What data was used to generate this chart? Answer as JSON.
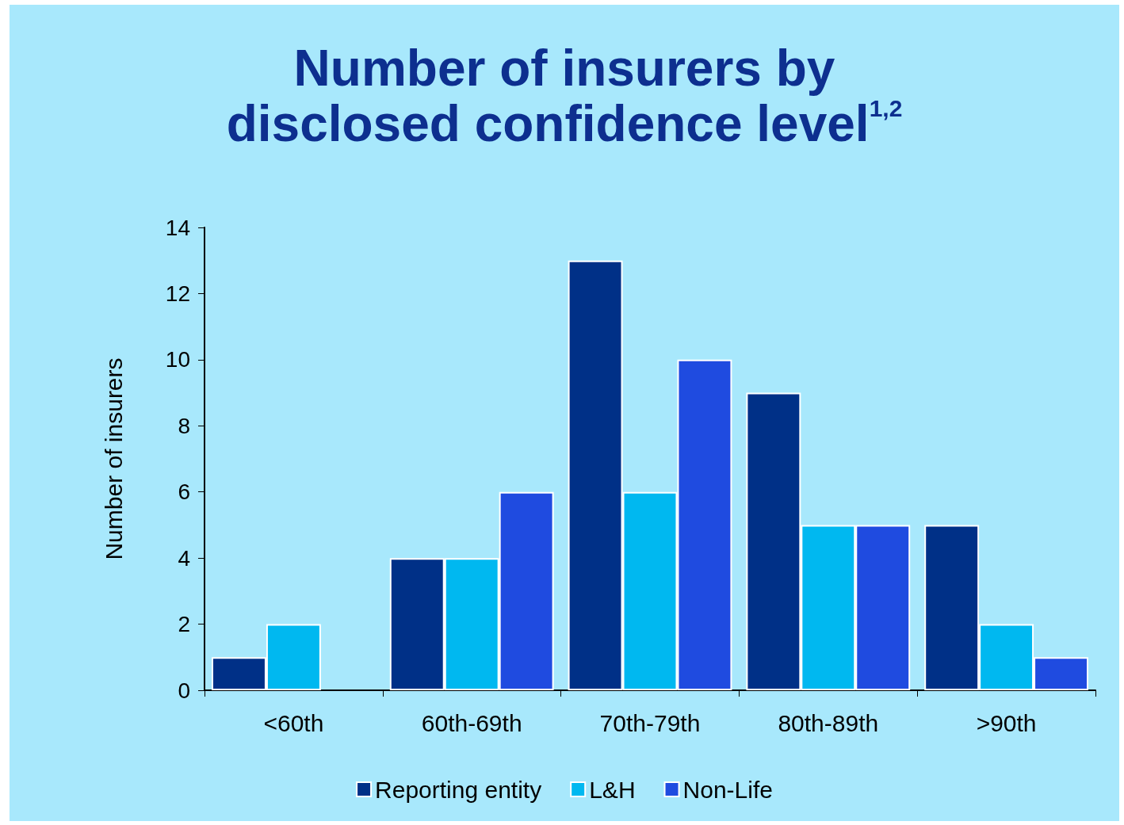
{
  "chart_data": {
    "type": "bar",
    "title": "Number of insurers by\ndisclosed confidence level$^{1,2}$",
    "ylabel": "Number of insurers",
    "categories": [
      "<60th",
      "60th-69th",
      "70th-79th",
      "80th-89th",
      ">90th"
    ],
    "series": [
      {
        "name": "Reporting entity",
        "color": "#003087",
        "values": [
          1,
          4,
          13,
          9,
          5
        ]
      },
      {
        "name": "L&H",
        "color": "#00b8f0",
        "values": [
          2,
          4,
          6,
          5,
          2
        ]
      },
      {
        "name": "Non-Life",
        "color": "#1f4be0",
        "values": [
          null,
          6,
          10,
          5,
          1
        ]
      }
    ],
    "ylim": [
      0,
      14
    ],
    "yticks": [
      0,
      2,
      4,
      6,
      8,
      10,
      12,
      14
    ],
    "grid": false,
    "legend": "bottom"
  }
}
